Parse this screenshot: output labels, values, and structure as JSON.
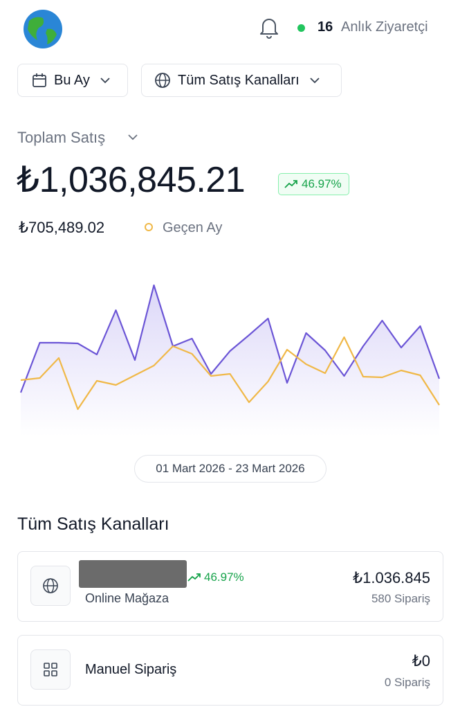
{
  "header": {
    "visitor_count": "16",
    "visitor_label": "Anlık Ziyaretçi"
  },
  "filters": {
    "period": "Bu Ay",
    "channel": "Tüm Satış Kanalları"
  },
  "summary": {
    "title": "Toplam Satış",
    "total": "₺1,036,845.21",
    "change": "46.97%",
    "previous": "₺705,489.02"
  },
  "chart_data": {
    "type": "line",
    "categories": [
      null,
      null,
      null,
      null,
      null,
      null,
      null,
      null,
      null,
      null,
      null,
      null,
      null,
      null,
      null,
      null,
      null,
      null,
      null,
      null,
      null,
      null,
      null
    ],
    "series": [
      {
        "color": "#6b55d6",
        "values": [
          31.5,
          67.5,
          67.5,
          67,
          59,
          91,
          55,
          109,
          65,
          70.5,
          45,
          61.5,
          73,
          85,
          38.5,
          74.5,
          62,
          43.5,
          65,
          83.5,
          64,
          79.5,
          41.5
        ]
      },
      {
        "name": "Geçen Ay",
        "color": "#f0b847",
        "values": [
          40.5,
          42,
          56.5,
          19.5,
          40,
          37,
          44,
          51,
          65,
          59.5,
          43.5,
          45,
          24.5,
          39.5,
          62.5,
          52,
          45.5,
          71.5,
          43,
          42.5,
          47.5,
          44,
          22.5
        ]
      }
    ],
    "ylim": [
      0,
      120
    ],
    "date_range": "01 Mart 2026 - 23 Mart 2026"
  },
  "channels": {
    "title": "Tüm Satış Kanalları",
    "items": [
      {
        "name": "Online Mağaza",
        "change": "46.97%",
        "amount": "₺1.036.845",
        "orders": "580 Sipariş"
      },
      {
        "name": "Manuel Sipariş",
        "amount": "₺0",
        "orders": "0 Sipariş"
      }
    ]
  }
}
